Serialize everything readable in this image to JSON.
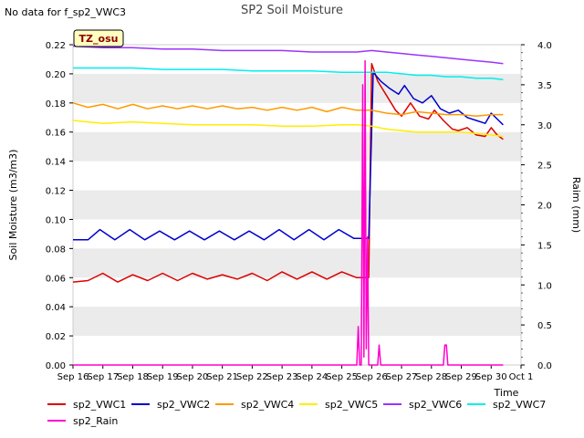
{
  "no_data_note": "No data for f_sp2_VWC3",
  "chart_data": {
    "type": "line",
    "title": "SP2 Soil Moisture",
    "xlabel": "Time",
    "ylabel": "Soil Moisture (m3/m3)",
    "y2label": "Raim (mm)",
    "badge": "TZ_osu",
    "x_ticks": [
      "Sep 16",
      "Sep 17",
      "Sep 18",
      "Sep 19",
      "Sep 20",
      "Sep 21",
      "Sep 22",
      "Sep 23",
      "Sep 24",
      "Sep 25",
      "Sep 26",
      "Sep 27",
      "Sep 28",
      "Sep 29",
      "Sep 30",
      "Oct 1"
    ],
    "xlim": [
      0,
      15
    ],
    "ylim": [
      0.0,
      0.22
    ],
    "y_ticks": [
      "0.00",
      "0.02",
      "0.04",
      "0.06",
      "0.08",
      "0.10",
      "0.12",
      "0.14",
      "0.16",
      "0.18",
      "0.20",
      "0.22"
    ],
    "y2lim": [
      0.0,
      4.0
    ],
    "y2_ticks": [
      "0.0",
      "0.5",
      "1.0",
      "1.5",
      "2.0",
      "2.5",
      "3.0",
      "3.5",
      "4.0"
    ],
    "grid": "horizontal bands",
    "legend_position": "bottom",
    "series": [
      {
        "name": "sp2_VWC1",
        "color": "#dd0000",
        "axis": "left",
        "x": [
          0,
          0.5,
          1,
          1.5,
          2,
          2.5,
          3,
          3.5,
          4,
          4.5,
          5,
          5.5,
          6,
          6.5,
          7,
          7.5,
          8,
          8.5,
          9,
          9.5,
          9.9,
          10,
          10.2,
          10.5,
          10.8,
          11,
          11.3,
          11.6,
          11.9,
          12.1,
          12.4,
          12.7,
          12.9,
          13.2,
          13.5,
          13.8,
          14,
          14.2,
          14.4
        ],
        "y": [
          0.057,
          0.058,
          0.063,
          0.057,
          0.062,
          0.058,
          0.063,
          0.058,
          0.063,
          0.059,
          0.062,
          0.059,
          0.063,
          0.058,
          0.064,
          0.059,
          0.064,
          0.059,
          0.064,
          0.06,
          0.06,
          0.207,
          0.195,
          0.185,
          0.175,
          0.171,
          0.18,
          0.171,
          0.169,
          0.175,
          0.168,
          0.162,
          0.161,
          0.163,
          0.158,
          0.157,
          0.163,
          0.158,
          0.155
        ]
      },
      {
        "name": "sp2_VWC2",
        "color": "#0000cc",
        "axis": "left",
        "x": [
          0,
          0.5,
          0.9,
          1.4,
          1.9,
          2.4,
          2.9,
          3.4,
          3.9,
          4.4,
          4.9,
          5.4,
          5.9,
          6.4,
          6.9,
          7.4,
          7.9,
          8.4,
          8.9,
          9.4,
          9.9,
          10.05,
          10.3,
          10.6,
          10.9,
          11.1,
          11.4,
          11.7,
          12,
          12.3,
          12.6,
          12.9,
          13.2,
          13.5,
          13.8,
          14,
          14.2,
          14.4
        ],
        "y": [
          0.086,
          0.086,
          0.093,
          0.086,
          0.093,
          0.086,
          0.092,
          0.086,
          0.092,
          0.086,
          0.092,
          0.086,
          0.092,
          0.086,
          0.093,
          0.086,
          0.093,
          0.086,
          0.093,
          0.087,
          0.087,
          0.201,
          0.195,
          0.19,
          0.186,
          0.192,
          0.183,
          0.18,
          0.185,
          0.176,
          0.173,
          0.175,
          0.17,
          0.168,
          0.166,
          0.173,
          0.169,
          0.165
        ]
      },
      {
        "name": "sp2_VWC4",
        "color": "#ff9900",
        "axis": "left",
        "x": [
          0,
          0.5,
          1,
          1.5,
          2,
          2.5,
          3,
          3.5,
          4,
          4.5,
          5,
          5.5,
          6,
          6.5,
          7,
          7.5,
          8,
          8.5,
          9,
          9.5,
          10,
          10.5,
          11,
          11.5,
          12,
          12.5,
          13,
          13.5,
          14,
          14.4
        ],
        "y": [
          0.18,
          0.177,
          0.179,
          0.176,
          0.179,
          0.176,
          0.178,
          0.176,
          0.178,
          0.176,
          0.178,
          0.176,
          0.177,
          0.175,
          0.177,
          0.175,
          0.177,
          0.174,
          0.177,
          0.175,
          0.175,
          0.173,
          0.172,
          0.174,
          0.173,
          0.172,
          0.172,
          0.171,
          0.172,
          0.172
        ]
      },
      {
        "name": "sp2_VWC5",
        "color": "#ffee00",
        "axis": "left",
        "x": [
          0,
          1,
          2,
          3,
          4,
          5,
          6,
          7,
          8,
          9,
          9.5,
          10,
          10.5,
          11,
          11.5,
          12,
          12.5,
          13,
          13.5,
          14,
          14.4
        ],
        "y": [
          0.168,
          0.166,
          0.167,
          0.166,
          0.165,
          0.165,
          0.165,
          0.164,
          0.164,
          0.165,
          0.165,
          0.164,
          0.162,
          0.161,
          0.16,
          0.16,
          0.16,
          0.16,
          0.159,
          0.158,
          0.157
        ]
      },
      {
        "name": "sp2_VWC6",
        "color": "#9933ff",
        "axis": "left",
        "x": [
          0,
          1,
          2,
          3,
          4,
          5,
          6,
          7,
          8,
          9,
          9.5,
          10,
          10.5,
          11,
          11.5,
          12,
          12.5,
          13,
          13.5,
          14,
          14.4
        ],
        "y": [
          0.219,
          0.218,
          0.218,
          0.217,
          0.217,
          0.216,
          0.216,
          0.216,
          0.215,
          0.215,
          0.215,
          0.216,
          0.215,
          0.214,
          0.213,
          0.212,
          0.211,
          0.21,
          0.209,
          0.208,
          0.207
        ]
      },
      {
        "name": "sp2_VWC7",
        "color": "#00eeee",
        "axis": "left",
        "x": [
          0,
          1,
          2,
          3,
          4,
          5,
          6,
          7,
          8,
          9,
          9.5,
          10,
          10.5,
          11,
          11.5,
          12,
          12.5,
          13,
          13.5,
          14,
          14.4
        ],
        "y": [
          0.204,
          0.204,
          0.204,
          0.203,
          0.203,
          0.203,
          0.202,
          0.202,
          0.202,
          0.201,
          0.201,
          0.201,
          0.201,
          0.2,
          0.199,
          0.199,
          0.198,
          0.198,
          0.197,
          0.197,
          0.196
        ]
      },
      {
        "name": "sp2_Rain",
        "color": "#ff00cc",
        "axis": "right",
        "x": [
          0,
          9.5,
          9.55,
          9.6,
          9.65,
          9.7,
          9.74,
          9.78,
          9.82,
          9.86,
          9.9,
          9.95,
          10.0,
          10.05,
          10.1,
          10.15,
          10.2,
          10.25,
          10.3,
          12.4,
          12.45,
          12.5,
          12.55,
          12.6,
          14.4
        ],
        "y": [
          0,
          0,
          0.48,
          0,
          0,
          3.5,
          0.1,
          3.8,
          0.2,
          1.6,
          0,
          0,
          0,
          0,
          0,
          0,
          0,
          0.25,
          0,
          0,
          0.25,
          0.25,
          0,
          0,
          0
        ]
      }
    ]
  }
}
